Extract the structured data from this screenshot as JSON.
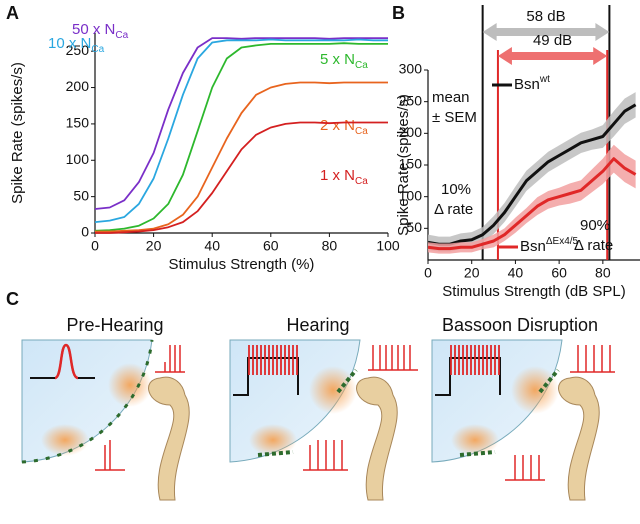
{
  "panels": [
    "A",
    "B",
    "C"
  ],
  "chart_data": [
    {
      "type": "line",
      "ylabel": "Spike Rate (spikes/s)",
      "xlabel": "Stimulus Strength (%)",
      "xlim": [
        0,
        100
      ],
      "ylim": [
        0,
        275
      ],
      "xticks": [
        0,
        20,
        40,
        60,
        80,
        100
      ],
      "yticks": [
        0,
        50,
        100,
        150,
        200,
        250
      ],
      "x": [
        0,
        5,
        10,
        15,
        20,
        25,
        30,
        35,
        40,
        45,
        50,
        55,
        60,
        65,
        70,
        75,
        80,
        85,
        90,
        95,
        100
      ],
      "series": [
        {
          "name": "50 x N",
          "sub": "Ca",
          "color": "#7a2fc8",
          "values": [
            33,
            35,
            45,
            70,
            110,
            170,
            220,
            255,
            268,
            268,
            267,
            268,
            268,
            268,
            268,
            268,
            267,
            268,
            268,
            268,
            268
          ]
        },
        {
          "name": "10 x N",
          "sub": "Ca",
          "color": "#2aa7e0",
          "values": [
            15,
            17,
            22,
            40,
            75,
            130,
            190,
            240,
            262,
            265,
            265,
            265,
            266,
            265,
            265,
            265,
            265,
            265,
            266,
            265,
            265
          ]
        },
        {
          "name": "5 x N",
          "sub": "Ca",
          "color": "#2db82d",
          "values": [
            3,
            4,
            6,
            10,
            20,
            40,
            80,
            140,
            200,
            240,
            255,
            258,
            260,
            260,
            260,
            260,
            260,
            261,
            260,
            260,
            260
          ]
        },
        {
          "name": "2 x N",
          "sub": "Ca",
          "color": "#e8641e",
          "values": [
            2,
            2,
            3,
            4,
            6,
            12,
            25,
            50,
            90,
            130,
            165,
            190,
            200,
            205,
            207,
            207,
            206,
            207,
            207,
            207,
            207
          ]
        },
        {
          "name": "1 x N",
          "sub": "Ca",
          "color": "#d42020",
          "values": [
            0,
            0,
            1,
            2,
            4,
            8,
            15,
            30,
            55,
            85,
            115,
            135,
            145,
            150,
            152,
            152,
            151,
            152,
            152,
            152,
            152
          ]
        }
      ]
    },
    {
      "type": "line",
      "ylabel": "Spike Rate (spikes/s)",
      "xlabel": "Stimulus Strength (dB SPL)",
      "xlim": [
        0,
        97
      ],
      "ylim": [
        0,
        300
      ],
      "xticks": [
        0,
        20,
        40,
        60,
        80
      ],
      "yticks": [
        50,
        100,
        150,
        200,
        250,
        300
      ],
      "x": [
        0,
        5,
        10,
        15,
        20,
        25,
        30,
        35,
        40,
        45,
        50,
        55,
        60,
        65,
        70,
        75,
        80,
        85,
        90,
        95
      ],
      "series": [
        {
          "name": "Bsn",
          "sup": "wt",
          "color": "#111111",
          "band": "#bdbdbd",
          "values": [
            28,
            25,
            25,
            30,
            32,
            40,
            55,
            75,
            100,
            125,
            140,
            155,
            165,
            175,
            185,
            190,
            195,
            215,
            235,
            245
          ],
          "errors": [
            12,
            12,
            12,
            12,
            12,
            12,
            14,
            15,
            16,
            16,
            16,
            16,
            16,
            16,
            16,
            16,
            18,
            20,
            20,
            20
          ]
        },
        {
          "name": "Bsn",
          "sup": "ΔEx4/5",
          "color": "#e02828",
          "band": "#f2a0a0",
          "values": [
            20,
            18,
            18,
            20,
            20,
            25,
            30,
            40,
            55,
            70,
            85,
            95,
            100,
            105,
            110,
            125,
            140,
            160,
            145,
            135
          ],
          "errors": [
            8,
            8,
            8,
            8,
            8,
            8,
            10,
            10,
            12,
            12,
            14,
            14,
            14,
            16,
            16,
            18,
            20,
            22,
            22,
            22
          ]
        }
      ],
      "vlines": [
        {
          "x": 25,
          "color": "#111111"
        },
        {
          "x": 83,
          "color": "#111111"
        },
        {
          "x": 32,
          "color": "#e02828"
        },
        {
          "x": 82,
          "color": "#e02828"
        }
      ],
      "arrows": [
        {
          "from": 25,
          "to": 83,
          "label": "58 dB",
          "color": "#bdbdbd"
        },
        {
          "from": 32,
          "to": 82,
          "label": "49 dB",
          "color": "#ee7070"
        }
      ],
      "annotations": [
        "mean",
        "± SEM",
        "10%",
        "Δ rate",
        "90%",
        "Δ rate"
      ]
    }
  ],
  "panel_c": {
    "titles": [
      "Pre-Hearing",
      "Hearing",
      "Bassoon Disruption"
    ]
  }
}
